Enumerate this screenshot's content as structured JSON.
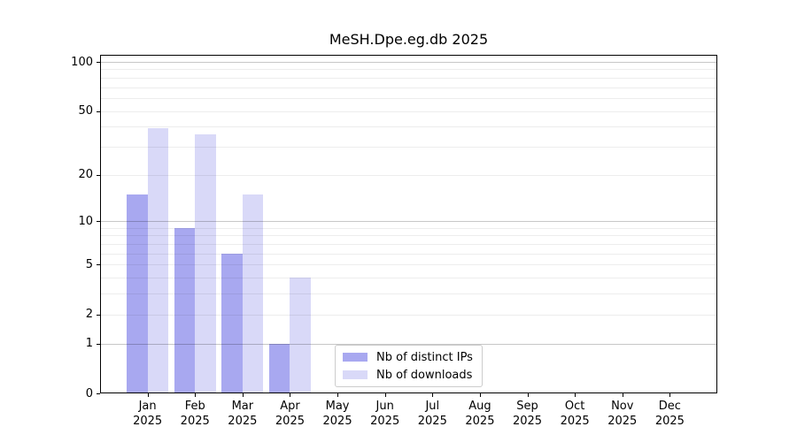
{
  "chart_data": {
    "type": "bar",
    "title": "MeSH.Dpe.eg.db 2025",
    "year": "2025",
    "categories": [
      "Jan",
      "Feb",
      "Mar",
      "Apr",
      "May",
      "Jun",
      "Jul",
      "Aug",
      "Sep",
      "Oct",
      "Nov",
      "Dec"
    ],
    "series": [
      {
        "name": "Nb of distinct IPs",
        "color": "#a8a8f0",
        "values": [
          15,
          9,
          6,
          1,
          0,
          0,
          0,
          0,
          0,
          0,
          0,
          0
        ]
      },
      {
        "name": "Nb of downloads",
        "color": "#d9d9f8",
        "values": [
          39,
          36,
          15,
          4,
          0,
          0,
          0,
          0,
          0,
          0,
          0,
          0
        ]
      }
    ],
    "xlabel": "",
    "ylabel": "",
    "yscale": "log1p",
    "ylim": [
      0,
      100
    ],
    "yticks": [
      100,
      50,
      20,
      10,
      5,
      2,
      1,
      0
    ],
    "major_gridlines": [
      1,
      10,
      100
    ],
    "minor_gridlines": [
      2,
      3,
      4,
      5,
      6,
      7,
      8,
      9,
      20,
      30,
      40,
      50,
      60,
      70,
      80,
      90
    ],
    "grid": true,
    "legend_position": "lower center"
  },
  "colors": {
    "bar_distinct_ips": "#a8a8f0",
    "bar_downloads": "#d9d9f8",
    "grid_major": "rgba(0,0,0,0.22)",
    "grid_minor": "rgba(0,0,0,0.07)",
    "axis": "#000000",
    "legend_border": "#cccccc"
  }
}
